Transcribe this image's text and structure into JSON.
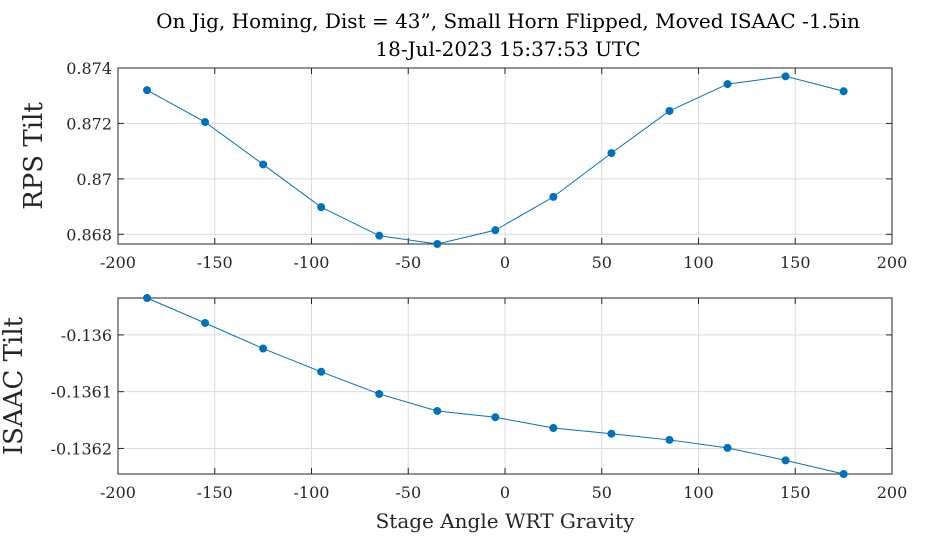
{
  "title_line1": "On Jig, Homing, Dist = 43”, Small Horn Flipped, Moved ISAAC -1.5in",
  "title_line2": "18-Jul-2023 15:37:53 UTC",
  "series_color": "#0072BD",
  "chart_data": [
    {
      "type": "line",
      "ylabel": "RPS Tilt",
      "xlabel": "",
      "xlim": [
        -200,
        200
      ],
      "ylim": [
        0.86765,
        0.874
      ],
      "grid": true,
      "x_ticks": [
        -200,
        -150,
        -100,
        -50,
        0,
        50,
        100,
        150,
        200
      ],
      "x_tick_labels": [
        "-200",
        "-150",
        "-100",
        "-50",
        "0",
        "50",
        "100",
        "150",
        "200"
      ],
      "y_ticks": [
        0.868,
        0.87,
        0.872,
        0.874
      ],
      "y_tick_labels": [
        "0.868",
        "0.87",
        "0.872",
        "0.874"
      ],
      "x": [
        -185,
        -155,
        -125,
        -95,
        -65,
        -35,
        -5,
        25,
        55,
        85,
        115,
        145,
        175
      ],
      "y": [
        0.8732,
        0.87205,
        0.87052,
        0.86898,
        0.86795,
        0.86765,
        0.86815,
        0.86935,
        0.87093,
        0.87245,
        0.87342,
        0.8737,
        0.87316
      ]
    },
    {
      "type": "line",
      "ylabel": "ISAAC Tilt",
      "xlabel": "Stage Angle WRT Gravity",
      "xlim": [
        -200,
        200
      ],
      "ylim": [
        -0.136245,
        -0.135935
      ],
      "grid": true,
      "x_ticks": [
        -200,
        -150,
        -100,
        -50,
        0,
        50,
        100,
        150,
        200
      ],
      "x_tick_labels": [
        "-200",
        "-150",
        "-100",
        "-50",
        "0",
        "50",
        "100",
        "150",
        "200"
      ],
      "y_ticks": [
        -0.136,
        -0.1361,
        -0.1362
      ],
      "y_tick_labels": [
        "-0.136",
        "-0.1361",
        "-0.1362"
      ],
      "x": [
        -185,
        -155,
        -125,
        -95,
        -65,
        -35,
        -5,
        25,
        55,
        85,
        115,
        145,
        175
      ],
      "y": [
        -0.135935,
        -0.135979,
        -0.136024,
        -0.136065,
        -0.136104,
        -0.136134,
        -0.136145,
        -0.136164,
        -0.136174,
        -0.136185,
        -0.136199,
        -0.136221,
        -0.136245
      ]
    }
  ]
}
